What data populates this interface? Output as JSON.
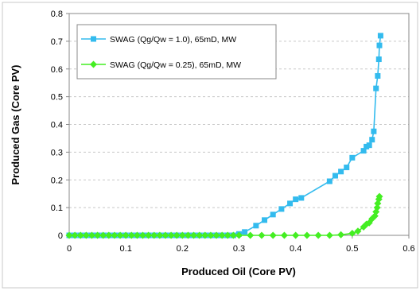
{
  "chart_data": {
    "type": "scatter",
    "xlabel": "Produced Oil (Core PV)",
    "ylabel": "Produced Gas (Core PV)",
    "xlim": [
      0,
      0.6
    ],
    "ylim": [
      0,
      0.8
    ],
    "x_ticks": [
      "0",
      "0.1",
      "0.2",
      "0.3",
      "0.4",
      "0.5",
      "0.6"
    ],
    "y_ticks": [
      "0",
      "0.1",
      "0.2",
      "0.3",
      "0.4",
      "0.5",
      "0.6",
      "0.7",
      "0.8"
    ],
    "grid": "horizontal dashed",
    "legend_position": "top-left",
    "series": [
      {
        "name": "SWAG (Qg/Qw = 1.0), 65mD, MW",
        "color": "#33bbee",
        "marker": "square",
        "points": [
          [
            0,
            0
          ],
          [
            0.01,
            0
          ],
          [
            0.02,
            0
          ],
          [
            0.03,
            0
          ],
          [
            0.04,
            0
          ],
          [
            0.05,
            0
          ],
          [
            0.06,
            0
          ],
          [
            0.07,
            0
          ],
          [
            0.08,
            0
          ],
          [
            0.09,
            0
          ],
          [
            0.1,
            0
          ],
          [
            0.11,
            0
          ],
          [
            0.12,
            0
          ],
          [
            0.13,
            0
          ],
          [
            0.14,
            0
          ],
          [
            0.15,
            0
          ],
          [
            0.16,
            0
          ],
          [
            0.17,
            0
          ],
          [
            0.18,
            0
          ],
          [
            0.19,
            0
          ],
          [
            0.2,
            0
          ],
          [
            0.21,
            0
          ],
          [
            0.22,
            0
          ],
          [
            0.23,
            0
          ],
          [
            0.24,
            0
          ],
          [
            0.25,
            0
          ],
          [
            0.26,
            0
          ],
          [
            0.27,
            0
          ],
          [
            0.28,
            0
          ],
          [
            0.29,
            0
          ],
          [
            0.3,
            0.005
          ],
          [
            0.31,
            0.012
          ],
          [
            0.33,
            0.035
          ],
          [
            0.345,
            0.055
          ],
          [
            0.36,
            0.075
          ],
          [
            0.375,
            0.095
          ],
          [
            0.39,
            0.115
          ],
          [
            0.4,
            0.13
          ],
          [
            0.41,
            0.135
          ],
          [
            0.46,
            0.195
          ],
          [
            0.47,
            0.215
          ],
          [
            0.48,
            0.23
          ],
          [
            0.49,
            0.245
          ],
          [
            0.5,
            0.28
          ],
          [
            0.52,
            0.305
          ],
          [
            0.525,
            0.32
          ],
          [
            0.53,
            0.325
          ],
          [
            0.535,
            0.345
          ],
          [
            0.538,
            0.375
          ],
          [
            0.542,
            0.53
          ],
          [
            0.545,
            0.575
          ],
          [
            0.547,
            0.635
          ],
          [
            0.548,
            0.685
          ],
          [
            0.55,
            0.72
          ]
        ]
      },
      {
        "name": "SWAG (Qg/Qw = 0.25), 65mD, MW",
        "color": "#44ee22",
        "marker": "diamond",
        "points": [
          [
            0,
            0
          ],
          [
            0.01,
            0
          ],
          [
            0.02,
            0
          ],
          [
            0.03,
            0
          ],
          [
            0.04,
            0
          ],
          [
            0.05,
            0
          ],
          [
            0.06,
            0
          ],
          [
            0.07,
            0
          ],
          [
            0.08,
            0
          ],
          [
            0.09,
            0
          ],
          [
            0.1,
            0
          ],
          [
            0.11,
            0
          ],
          [
            0.12,
            0
          ],
          [
            0.13,
            0
          ],
          [
            0.14,
            0
          ],
          [
            0.15,
            0
          ],
          [
            0.16,
            0
          ],
          [
            0.17,
            0
          ],
          [
            0.18,
            0
          ],
          [
            0.19,
            0
          ],
          [
            0.2,
            0
          ],
          [
            0.21,
            0
          ],
          [
            0.22,
            0
          ],
          [
            0.23,
            0
          ],
          [
            0.24,
            0
          ],
          [
            0.25,
            0
          ],
          [
            0.26,
            0
          ],
          [
            0.27,
            0
          ],
          [
            0.28,
            0
          ],
          [
            0.29,
            0
          ],
          [
            0.3,
            0
          ],
          [
            0.32,
            0
          ],
          [
            0.34,
            0
          ],
          [
            0.36,
            0
          ],
          [
            0.38,
            0
          ],
          [
            0.4,
            0
          ],
          [
            0.42,
            0
          ],
          [
            0.44,
            0
          ],
          [
            0.46,
            0
          ],
          [
            0.48,
            0.002
          ],
          [
            0.5,
            0.007
          ],
          [
            0.51,
            0.015
          ],
          [
            0.52,
            0.03
          ],
          [
            0.525,
            0.04
          ],
          [
            0.53,
            0.045
          ],
          [
            0.535,
            0.06
          ],
          [
            0.54,
            0.07
          ],
          [
            0.542,
            0.085
          ],
          [
            0.544,
            0.1
          ],
          [
            0.545,
            0.115
          ],
          [
            0.547,
            0.13
          ],
          [
            0.548,
            0.14
          ]
        ]
      }
    ]
  }
}
